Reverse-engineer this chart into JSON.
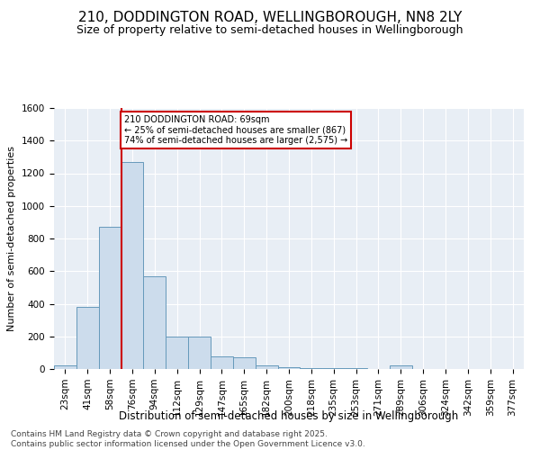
{
  "title": "210, DODDINGTON ROAD, WELLINGBOROUGH, NN8 2LY",
  "subtitle": "Size of property relative to semi-detached houses in Wellingborough",
  "xlabel": "Distribution of semi-detached houses by size in Wellingborough",
  "ylabel": "Number of semi-detached properties",
  "categories": [
    "23sqm",
    "41sqm",
    "58sqm",
    "76sqm",
    "94sqm",
    "112sqm",
    "129sqm",
    "147sqm",
    "165sqm",
    "182sqm",
    "200sqm",
    "218sqm",
    "235sqm",
    "253sqm",
    "271sqm",
    "289sqm",
    "306sqm",
    "324sqm",
    "342sqm",
    "359sqm",
    "377sqm"
  ],
  "values": [
    20,
    380,
    870,
    1270,
    570,
    200,
    200,
    80,
    70,
    20,
    10,
    5,
    5,
    5,
    0,
    20,
    0,
    0,
    0,
    0,
    0
  ],
  "bar_color": "#ccdcec",
  "bar_edge_color": "#6699bb",
  "annotation_box_color": "#cc0000",
  "property_line_label": "210 DODDINGTON ROAD: 69sqm",
  "smaller_pct": "25%",
  "smaller_count": "867",
  "larger_pct": "74%",
  "larger_count": "2,575",
  "ylim": [
    0,
    1600
  ],
  "yticks": [
    0,
    200,
    400,
    600,
    800,
    1000,
    1200,
    1400,
    1600
  ],
  "background_color": "#e8eef5",
  "grid_color": "#ffffff",
  "footer": "Contains HM Land Registry data © Crown copyright and database right 2025.\nContains public sector information licensed under the Open Government Licence v3.0.",
  "title_fontsize": 11,
  "subtitle_fontsize": 9,
  "xlabel_fontsize": 8.5,
  "ylabel_fontsize": 8,
  "tick_fontsize": 7.5,
  "footer_fontsize": 6.5
}
